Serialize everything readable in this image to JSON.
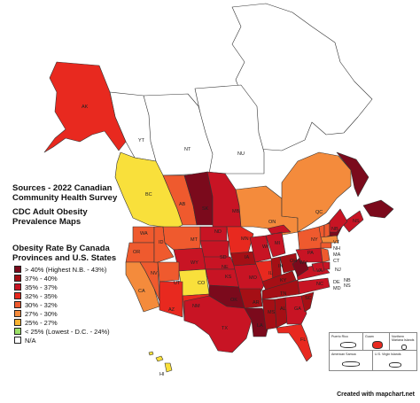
{
  "map": {
    "title_lines": [
      "Sources - 2022 Canadian",
      "Community Health Survey"
    ],
    "subtitle_lines": [
      "CDC Adult Obesity",
      "Prevalence Maps"
    ],
    "legend": {
      "title_lines": [
        "Obesity Rate By Canada",
        "Provinces and U.S. States"
      ],
      "items": [
        {
          "label": "> 40% (Highest N.B. - 43%)",
          "color": "#7b0a1c"
        },
        {
          "label": "37% - 40%",
          "color": "#a50f15"
        },
        {
          "label": "35% - 37%",
          "color": "#c81424"
        },
        {
          "label": "32% - 35%",
          "color": "#e8291f"
        },
        {
          "label": "30% - 32%",
          "color": "#ef5a2e"
        },
        {
          "label": "27% - 30%",
          "color": "#f48b3c"
        },
        {
          "label": "25% - 27%",
          "color": "#f9b233"
        },
        {
          "label": "< 25% (Lowest - D.C. - 24%)",
          "color": "#9be067"
        },
        {
          "label": "N/A",
          "color": "#ffffff"
        }
      ]
    },
    "regions": [
      {
        "code": "",
        "color": "#ffffff"
      },
      {
        "code": "NU",
        "color": "#ffffff"
      },
      {
        "code": "NT",
        "color": "#ffffff"
      },
      {
        "code": "YT",
        "color": "#ffffff"
      },
      {
        "code": "AK",
        "color": "#e8291f"
      },
      {
        "code": "BC",
        "color": "#f9e03b"
      },
      {
        "code": "AB",
        "color": "#ef5a2e"
      },
      {
        "code": "SK",
        "color": "#7b0a1c"
      },
      {
        "code": "MB",
        "color": "#c81424"
      },
      {
        "code": "ON",
        "color": "#f48b3c"
      },
      {
        "code": "QC",
        "color": "#f48b3c"
      },
      {
        "code": "",
        "color": "#7b0a1c"
      },
      {
        "code": "NB",
        "color": "#7b0a1c"
      },
      {
        "code": "NS",
        "color": "#c81424"
      },
      {
        "code": "WA",
        "color": "#ef5a2e"
      },
      {
        "code": "OR",
        "color": "#ef5a2e"
      },
      {
        "code": "CA",
        "color": "#f48b3c"
      },
      {
        "code": "NV",
        "color": "#ef5a2e"
      },
      {
        "code": "ID",
        "color": "#ef5a2e"
      },
      {
        "code": "MT",
        "color": "#ef5a2e"
      },
      {
        "code": "WY",
        "color": "#c81424"
      },
      {
        "code": "UT",
        "color": "#ef5a2e"
      },
      {
        "code": "CO",
        "color": "#f9e03b"
      },
      {
        "code": "AZ",
        "color": "#e8291f"
      },
      {
        "code": "NM",
        "color": "#e8291f"
      },
      {
        "code": "ND",
        "color": "#c81424"
      },
      {
        "code": "SD",
        "color": "#c81424"
      },
      {
        "code": "NE",
        "color": "#c81424"
      },
      {
        "code": "KS",
        "color": "#c81424"
      },
      {
        "code": "OK",
        "color": "#7b0a1c"
      },
      {
        "code": "TX",
        "color": "#c81424"
      },
      {
        "code": "MN",
        "color": "#e8291f"
      },
      {
        "code": "IA",
        "color": "#a50f15"
      },
      {
        "code": "MO",
        "color": "#c81424"
      },
      {
        "code": "AR",
        "color": "#a50f15"
      },
      {
        "code": "LA",
        "color": "#7b0a1c"
      },
      {
        "code": "WI",
        "color": "#c81424"
      },
      {
        "code": "IL",
        "color": "#e8291f"
      },
      {
        "code": "MI",
        "color": "#c81424"
      },
      {
        "code": "IN",
        "color": "#a50f15"
      },
      {
        "code": "OH",
        "color": "#a50f15"
      },
      {
        "code": "KY",
        "color": "#a50f15"
      },
      {
        "code": "TN",
        "color": "#a50f15"
      },
      {
        "code": "MS",
        "color": "#a50f15"
      },
      {
        "code": "AL",
        "color": "#a50f15"
      },
      {
        "code": "GA",
        "color": "#c81424"
      },
      {
        "code": "FL",
        "color": "#e8291f"
      },
      {
        "code": "SC",
        "color": "#a50f15"
      },
      {
        "code": "NC",
        "color": "#c81424"
      },
      {
        "code": "VA",
        "color": "#c81424"
      },
      {
        "code": "WV",
        "color": "#7b0a1c"
      },
      {
        "code": "PA",
        "color": "#c81424"
      },
      {
        "code": "NY",
        "color": "#ef5a2e"
      },
      {
        "code": "VT",
        "color": "#ef5a2e"
      },
      {
        "code": "NH",
        "color": "#ef5a2e"
      },
      {
        "code": "ME",
        "color": "#c81424"
      },
      {
        "code": "MA",
        "color": "#f48b3c"
      },
      {
        "code": "CT",
        "color": "#ef5a2e"
      },
      {
        "code": "NJ",
        "color": "#ef5a2e"
      },
      {
        "code": "DE",
        "color": "#c81424"
      },
      {
        "code": "MD",
        "color": "#c81424"
      },
      {
        "code": "HI",
        "color": "#f9e03b"
      }
    ],
    "insets": [
      {
        "label": "Puerto Rico",
        "color": "#ffffff"
      },
      {
        "label": "Guam",
        "color": "#e8291f"
      },
      {
        "label": "Northern Mariana Islands",
        "color": "#ffffff"
      },
      {
        "label": "American Samoa",
        "color": "#ffffff"
      },
      {
        "label": "U.S. Virgin Islands",
        "color": "#ffffff"
      }
    ],
    "credit": "Created with mapchart.net"
  }
}
